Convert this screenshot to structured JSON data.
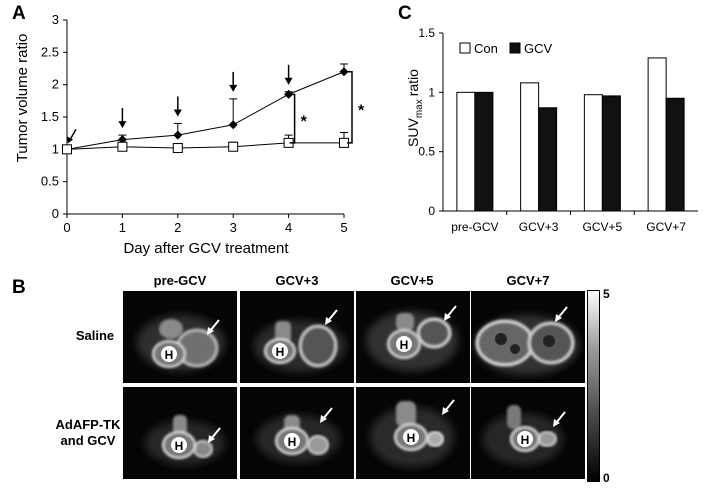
{
  "panels": {
    "a": {
      "letter": "A"
    },
    "b": {
      "letter": "B"
    },
    "c": {
      "letter": "C"
    }
  },
  "chart_data": [
    {
      "type": "line",
      "ylabel": "Tumor volume ratio",
      "xlabel": "Day after GCV treatment",
      "x": [
        0,
        1,
        2,
        3,
        4,
        5
      ],
      "xlim": [
        0,
        5
      ],
      "ylim": [
        0,
        3
      ],
      "y_ticks": [
        "0",
        "0.5",
        "1",
        "1.5",
        "2",
        "2.5",
        "3"
      ],
      "x_ticks": [
        "0",
        "1",
        "2",
        "3",
        "4",
        "5"
      ],
      "series": [
        {
          "marker": "filled-diamond",
          "values": [
            1.0,
            1.15,
            1.22,
            1.38,
            1.85,
            2.2
          ],
          "errors": [
            0,
            0.07,
            0.18,
            0.4,
            0.04,
            0.12
          ]
        },
        {
          "marker": "open-square",
          "values": [
            1.0,
            1.04,
            1.02,
            1.04,
            1.1,
            1.1
          ],
          "errors": [
            0,
            0.05,
            0.06,
            0.07,
            0.12,
            0.16
          ]
        }
      ],
      "significance": [
        "*",
        "*"
      ],
      "grid": false
    },
    {
      "type": "bar",
      "ylabel_main": "SUV",
      "ylabel_sub": "max",
      "ylabel_tail": "ratio",
      "categories": [
        "pre-GCV",
        "GCV+3",
        "GCV+5",
        "GCV+7"
      ],
      "ylim": [
        0,
        1.5
      ],
      "y_ticks": [
        "0",
        "0.5",
        "1",
        "1.5"
      ],
      "legend_position": "top-left",
      "series": [
        {
          "name": "Con",
          "color": "#ffffff",
          "values": [
            1.0,
            1.08,
            0.98,
            1.29
          ]
        },
        {
          "name": "GCV",
          "color": "#111111",
          "values": [
            1.0,
            0.87,
            0.97,
            0.95
          ]
        }
      ],
      "grid": false
    }
  ],
  "pet_panel": {
    "columns": [
      "pre-GCV",
      "GCV+3",
      "GCV+5",
      "GCV+7"
    ],
    "rows": [
      {
        "line1": "Saline",
        "line2": ""
      },
      {
        "line1": "AdAFP-TK",
        "line2": "and GCV"
      }
    ],
    "heart_label": "H",
    "colorbar": {
      "max_label": "5",
      "min_label": "0"
    }
  }
}
